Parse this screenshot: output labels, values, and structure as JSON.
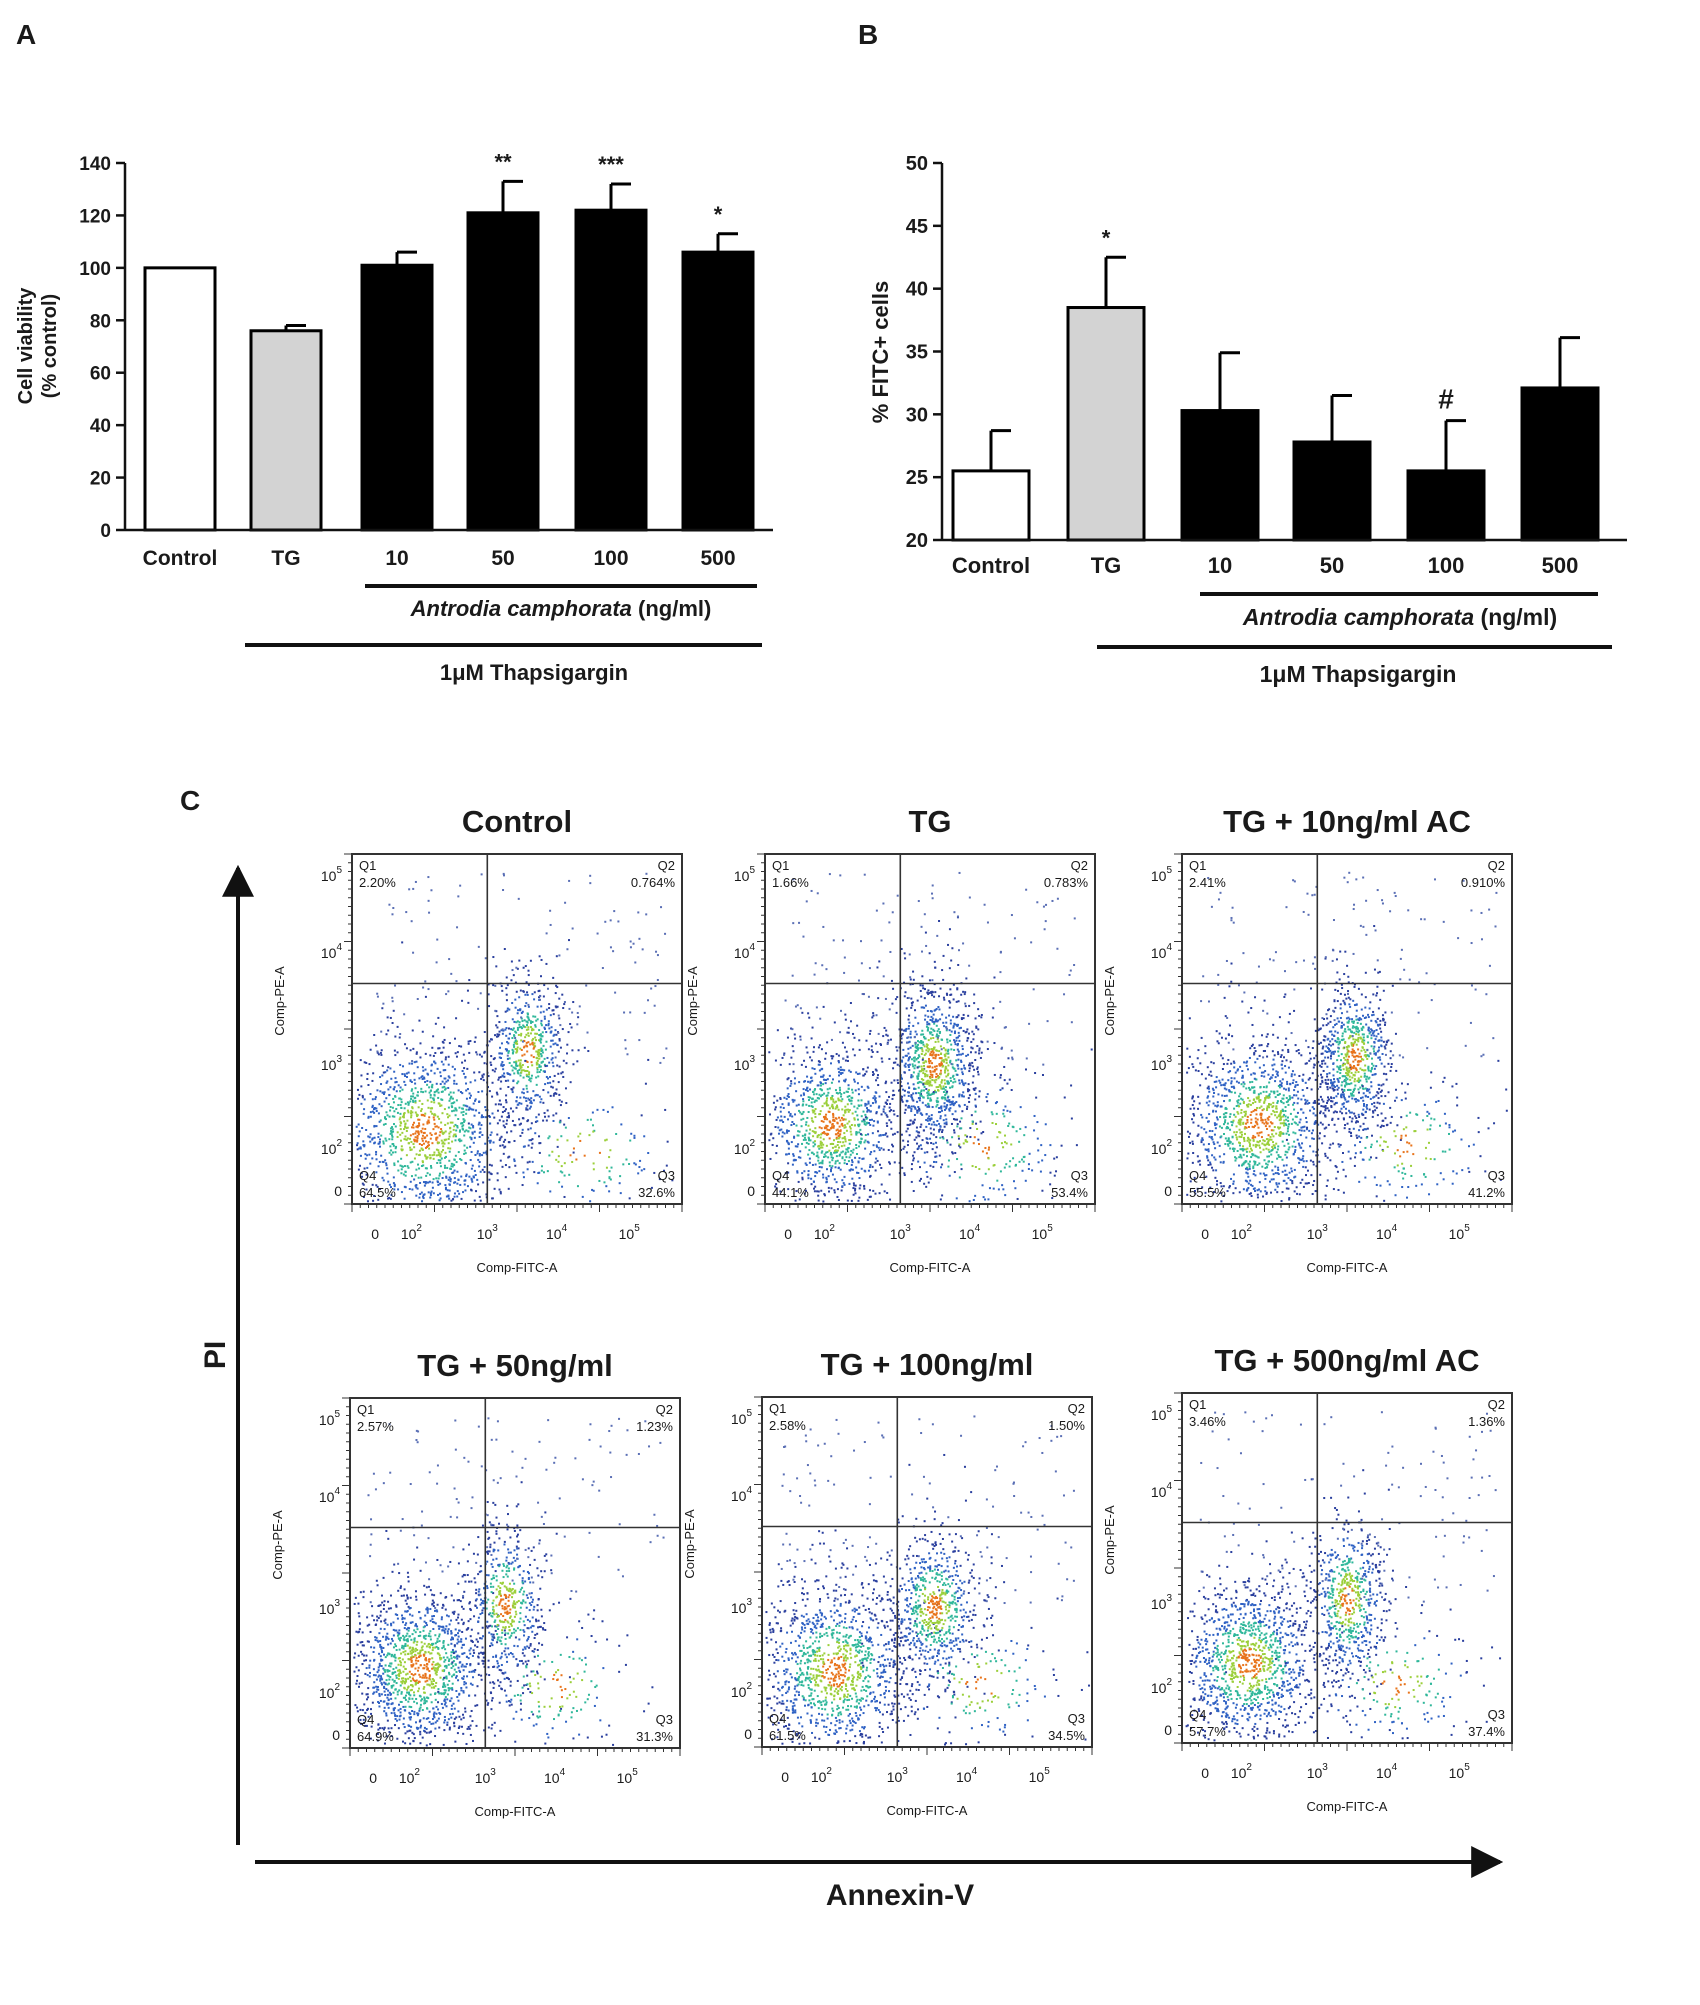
{
  "panel_letters": {
    "a": "A",
    "b": "B",
    "c": "C"
  },
  "chart_data": [
    {
      "type": "bar",
      "panel": "A",
      "categories": [
        "Control",
        "TG",
        "10",
        "50",
        "100",
        "500"
      ],
      "values": [
        100,
        76,
        101,
        121,
        122,
        106
      ],
      "errors": [
        0,
        2,
        5,
        12,
        10,
        7
      ],
      "significance": [
        "",
        "",
        "",
        "**",
        "***",
        "*"
      ],
      "bar_colors": [
        "#ffffff",
        "#d3d3d3",
        "#000000",
        "#000000",
        "#000000",
        "#000000"
      ],
      "ylabel_line1": "Cell viability",
      "ylabel_line2": "(% control)",
      "ylim": [
        0,
        140
      ],
      "yticks": [
        "0",
        "20",
        "40",
        "60",
        "80",
        "100",
        "120",
        "140"
      ],
      "bracket_label_italic": "Antrodia camphorata",
      "bracket_label_rest": " (ng/ml)",
      "treatment_label": "1μM Thapsigargin",
      "grid": false
    },
    {
      "type": "bar",
      "panel": "B",
      "categories": [
        "Control",
        "TG",
        "10",
        "50",
        "100",
        "500"
      ],
      "values": [
        25.5,
        38.5,
        30.3,
        27.8,
        25.5,
        32.1
      ],
      "errors": [
        3.2,
        4,
        4.6,
        3.7,
        4,
        4
      ],
      "significance": [
        "",
        "*",
        "",
        "",
        "#",
        ""
      ],
      "bar_colors": [
        "#ffffff",
        "#d3d3d3",
        "#000000",
        "#000000",
        "#000000",
        "#000000"
      ],
      "ylabel": "% FITC+ cells",
      "ylim": [
        20,
        50
      ],
      "yticks": [
        "20",
        "25",
        "30",
        "35",
        "40",
        "45",
        "50"
      ],
      "bracket_label_italic": "Antrodia camphorata",
      "bracket_label_rest": " (ng/ml)",
      "treatment_label": "1μM Thapsigargin",
      "grid": false
    }
  ],
  "flow_panel": {
    "y_axis_label": "PI",
    "x_axis_label": "Annexin-V",
    "plot_xlabel": "Comp-FITC-A",
    "plot_ylabel": "Comp-PE-A",
    "plots": [
      {
        "title": "Control",
        "q1": "2.20%",
        "q2": "0.764%",
        "q3": "32.6%",
        "q4": "64.5%"
      },
      {
        "title": "TG",
        "q1": "1.66%",
        "q2": "0.783%",
        "q3": "53.4%",
        "q4": "44.1%"
      },
      {
        "title": "TG + 10ng/ml AC",
        "q1": "2.41%",
        "q2": "0.910%",
        "q3": "41.2%",
        "q4": "55.5%"
      },
      {
        "title": "TG + 50ng/ml",
        "q1": "2.57%",
        "q2": "1.23%",
        "q3": "31.3%",
        "q4": "64.9%"
      },
      {
        "title": "TG + 100ng/ml",
        "q1": "2.58%",
        "q2": "1.50%",
        "q3": "34.5%",
        "q4": "61.5%"
      },
      {
        "title": "TG + 500ng/ml AC",
        "q1": "3.46%",
        "q2": "1.36%",
        "q3": "37.4%",
        "q4": "57.7%"
      }
    ]
  }
}
